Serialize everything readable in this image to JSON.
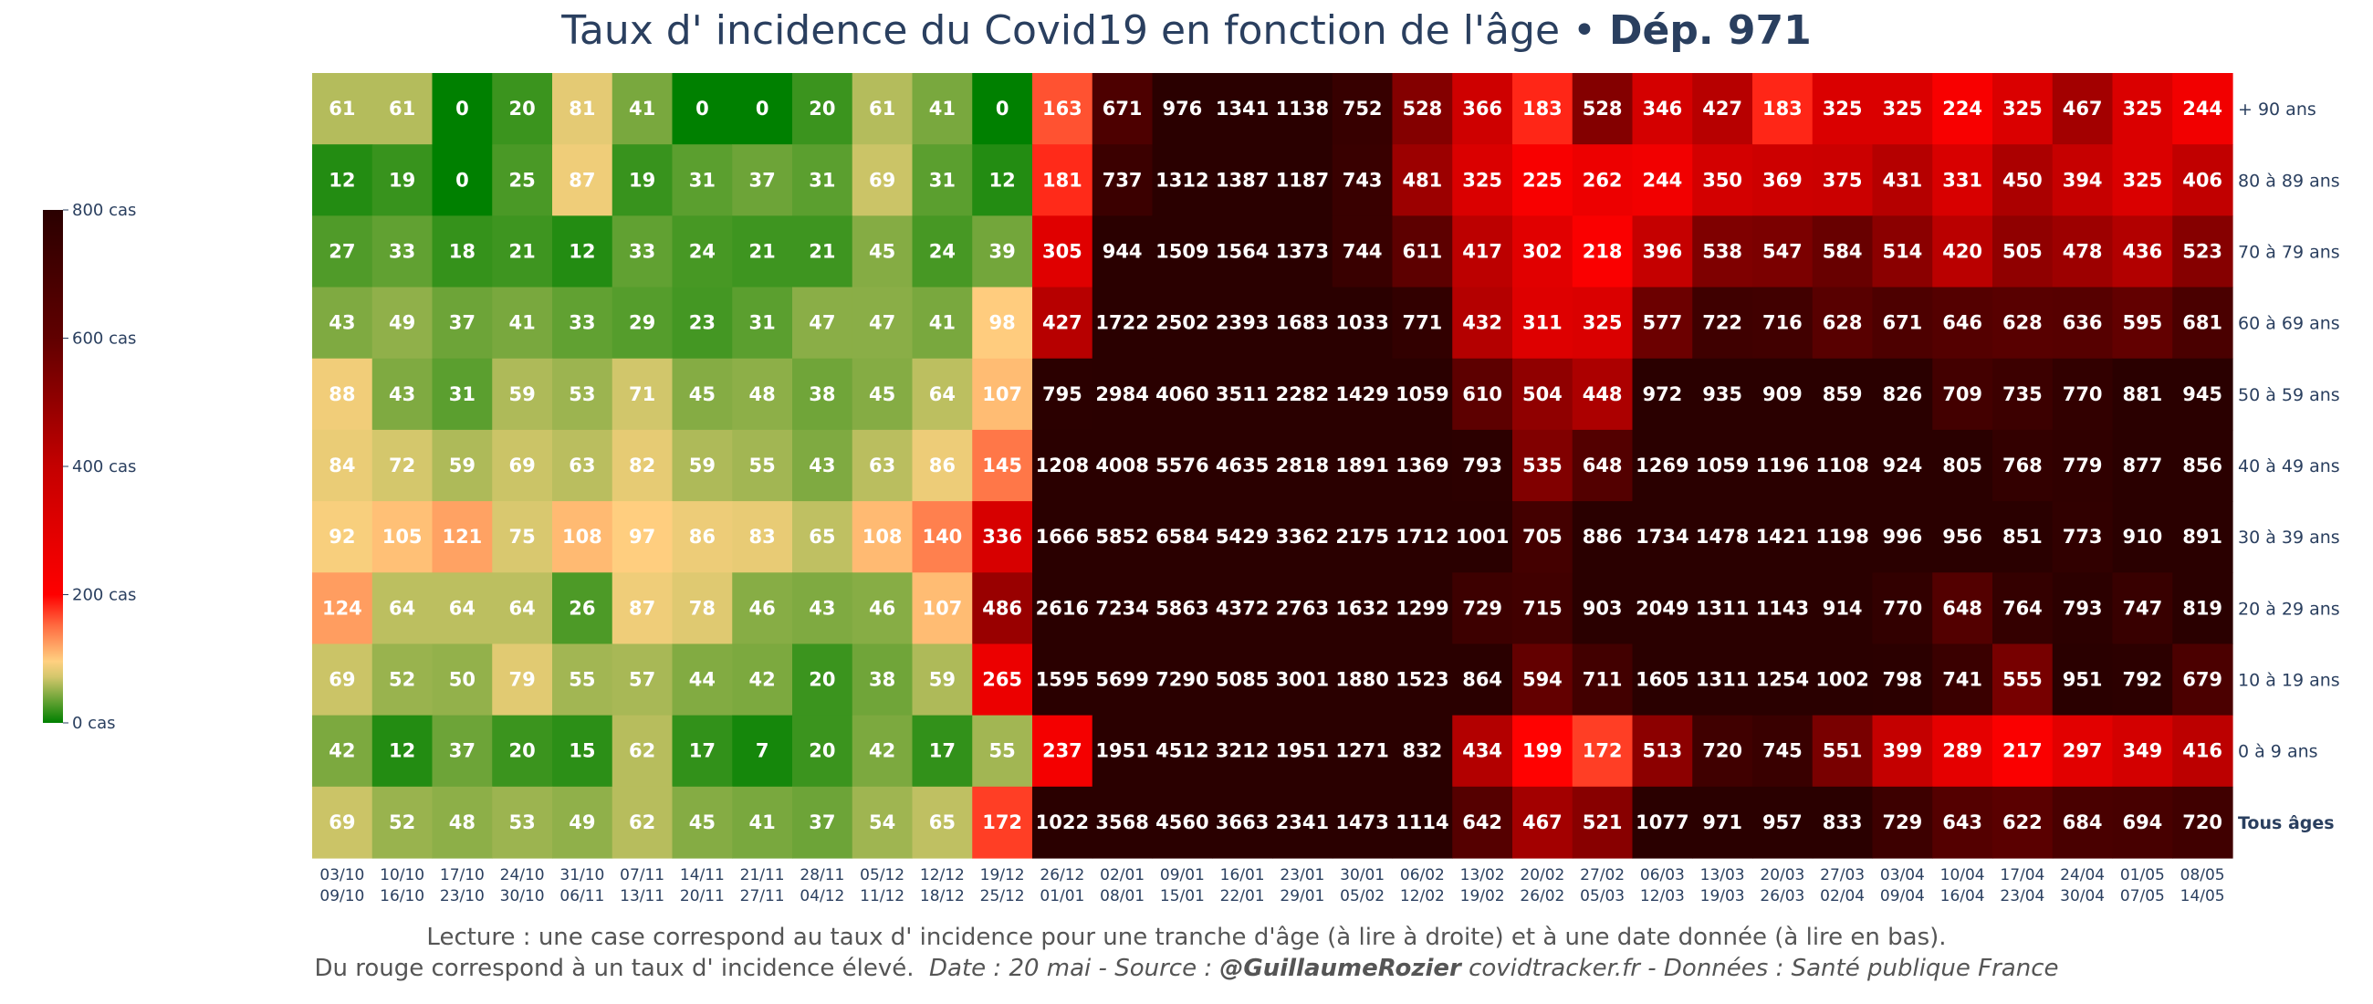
{
  "title": {
    "main": "Taux d' incidence du Covid19 en fonction de l'âge",
    "separator": " • ",
    "bold": "Dép. 971"
  },
  "footer": {
    "line1": "Lecture : une case correspond au taux d' incidence pour une tranche d'âge (à lire à droite) et à une date donnée (à lire en bas).",
    "line2_start": "Du rouge correspond à un taux d' incidence élevé.",
    "line2_italic": "Date : 20 mai - Source :",
    "line2_bold": "@GuillaumeRozier",
    "line2_end": "covidtracker.fr - Données : Santé publique France"
  },
  "chart_data": {
    "type": "heatmap",
    "title": "Taux d' incidence du Covid19 en fonction de l'âge • Dép. 971",
    "colorbar": {
      "min": 0,
      "max": 800,
      "ticks": [
        {
          "value": 0,
          "label": "0 cas"
        },
        {
          "value": 200,
          "label": "200 cas"
        },
        {
          "value": 400,
          "label": "400 cas"
        },
        {
          "value": 600,
          "label": "600 cas"
        },
        {
          "value": 800,
          "label": "800 cas"
        }
      ],
      "colorscale": [
        [
          0,
          "#008000"
        ],
        [
          0.09,
          "#d4c76c"
        ],
        [
          0.12,
          "#ffd080"
        ],
        [
          0.19,
          "#ff6a40"
        ],
        [
          0.25,
          "#ff0000"
        ],
        [
          0.5,
          "#c40000"
        ],
        [
          0.75,
          "#600000"
        ],
        [
          1,
          "#2a0000"
        ]
      ]
    },
    "x_start": [
      "03/10",
      "10/10",
      "17/10",
      "24/10",
      "31/10",
      "07/11",
      "14/11",
      "21/11",
      "28/11",
      "05/12",
      "12/12",
      "19/12",
      "26/12",
      "02/01",
      "09/01",
      "16/01",
      "23/01",
      "30/01",
      "06/02",
      "13/02",
      "20/02",
      "27/02",
      "06/03",
      "13/03",
      "20/03",
      "27/03",
      "03/04",
      "10/04",
      "17/04",
      "24/04",
      "01/05",
      "08/05"
    ],
    "x_end": [
      "09/10",
      "16/10",
      "23/10",
      "30/10",
      "06/11",
      "13/11",
      "20/11",
      "27/11",
      "04/12",
      "11/12",
      "18/12",
      "25/12",
      "01/01",
      "08/01",
      "15/01",
      "22/01",
      "29/01",
      "05/02",
      "12/02",
      "19/02",
      "26/02",
      "05/03",
      "12/03",
      "19/03",
      "26/03",
      "02/04",
      "09/04",
      "16/04",
      "23/04",
      "30/04",
      "07/05",
      "14/05"
    ],
    "rows": [
      {
        "label": "+ 90 ans",
        "bold": false,
        "values": [
          61,
          61,
          0,
          20,
          81,
          41,
          0,
          0,
          20,
          61,
          41,
          0,
          163,
          671,
          976,
          1341,
          1138,
          752,
          528,
          366,
          183,
          528,
          346,
          427,
          183,
          325,
          325,
          224,
          325,
          467,
          325,
          244
        ]
      },
      {
        "label": "80 à 89 ans",
        "bold": false,
        "values": [
          12,
          19,
          0,
          25,
          87,
          19,
          31,
          37,
          31,
          69,
          31,
          12,
          181,
          737,
          1312,
          1387,
          1187,
          743,
          481,
          325,
          225,
          262,
          244,
          350,
          369,
          375,
          431,
          331,
          450,
          394,
          325,
          406
        ]
      },
      {
        "label": "70 à 79 ans",
        "bold": false,
        "values": [
          27,
          33,
          18,
          21,
          12,
          33,
          24,
          21,
          21,
          45,
          24,
          39,
          305,
          944,
          1509,
          1564,
          1373,
          744,
          611,
          417,
          302,
          218,
          396,
          538,
          547,
          584,
          514,
          420,
          505,
          478,
          436,
          523
        ]
      },
      {
        "label": "60 à 69 ans",
        "bold": false,
        "values": [
          43,
          49,
          37,
          41,
          33,
          29,
          23,
          31,
          47,
          47,
          41,
          98,
          427,
          1722,
          2502,
          2393,
          1683,
          1033,
          771,
          432,
          311,
          325,
          577,
          722,
          716,
          628,
          671,
          646,
          628,
          636,
          595,
          681
        ]
      },
      {
        "label": "50 à 59 ans",
        "bold": false,
        "values": [
          88,
          43,
          31,
          59,
          53,
          71,
          45,
          48,
          38,
          45,
          64,
          107,
          795,
          2984,
          4060,
          3511,
          2282,
          1429,
          1059,
          610,
          504,
          448,
          972,
          935,
          909,
          859,
          826,
          709,
          735,
          770,
          881,
          945
        ]
      },
      {
        "label": "40 à 49 ans",
        "bold": false,
        "values": [
          84,
          72,
          59,
          69,
          63,
          82,
          59,
          55,
          43,
          63,
          86,
          145,
          1208,
          4008,
          5576,
          4635,
          2818,
          1891,
          1369,
          793,
          535,
          648,
          1269,
          1059,
          1196,
          1108,
          924,
          805,
          768,
          779,
          877,
          856
        ]
      },
      {
        "label": "30 à 39 ans",
        "bold": false,
        "values": [
          92,
          105,
          121,
          75,
          108,
          97,
          86,
          83,
          65,
          108,
          140,
          336,
          1666,
          5852,
          6584,
          5429,
          3362,
          2175,
          1712,
          1001,
          705,
          886,
          1734,
          1478,
          1421,
          1198,
          996,
          956,
          851,
          773,
          910,
          891
        ]
      },
      {
        "label": "20 à 29 ans",
        "bold": false,
        "values": [
          124,
          64,
          64,
          64,
          26,
          87,
          78,
          46,
          43,
          46,
          107,
          486,
          2616,
          7234,
          5863,
          4372,
          2763,
          1632,
          1299,
          729,
          715,
          903,
          2049,
          1311,
          1143,
          914,
          770,
          648,
          764,
          793,
          747,
          819
        ]
      },
      {
        "label": "10 à 19 ans",
        "bold": false,
        "values": [
          69,
          52,
          50,
          79,
          55,
          57,
          44,
          42,
          20,
          38,
          59,
          265,
          1595,
          5699,
          7290,
          5085,
          3001,
          1880,
          1523,
          864,
          594,
          711,
          1605,
          1311,
          1254,
          1002,
          798,
          741,
          555,
          951,
          792,
          679
        ]
      },
      {
        "label": "0 à 9 ans",
        "bold": false,
        "values": [
          42,
          12,
          37,
          20,
          15,
          62,
          17,
          7,
          20,
          42,
          17,
          55,
          237,
          1951,
          4512,
          3212,
          1951,
          1271,
          832,
          434,
          199,
          172,
          513,
          720,
          745,
          551,
          399,
          289,
          217,
          297,
          349,
          416
        ]
      },
      {
        "label": "Tous âges",
        "bold": true,
        "values": [
          69,
          52,
          48,
          53,
          49,
          62,
          45,
          41,
          37,
          54,
          65,
          172,
          1022,
          3568,
          4560,
          3663,
          2341,
          1473,
          1114,
          642,
          467,
          521,
          1077,
          971,
          957,
          833,
          729,
          643,
          622,
          684,
          694,
          720
        ]
      }
    ]
  }
}
